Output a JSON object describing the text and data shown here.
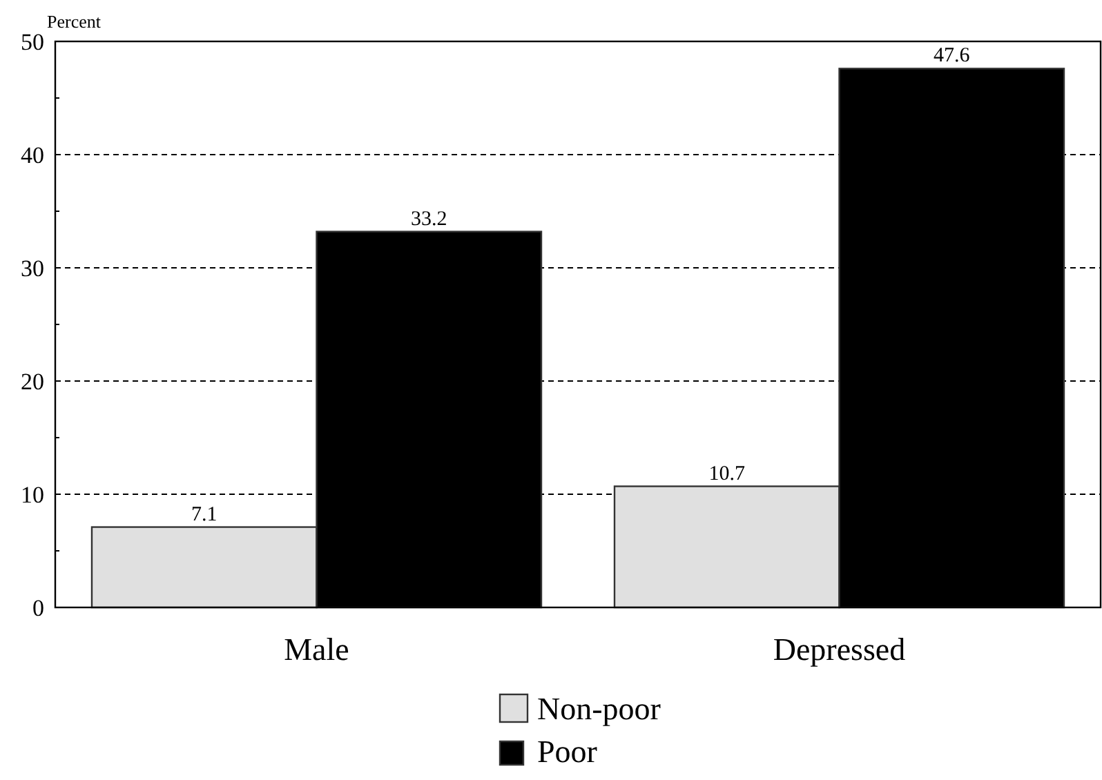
{
  "chart_data": {
    "type": "bar",
    "ylabel": "Percent",
    "categories": [
      "Male",
      "Depressed"
    ],
    "series": [
      {
        "name": "Non-poor",
        "color": "#e0e0e0",
        "values": [
          7.1,
          10.7
        ]
      },
      {
        "name": "Poor",
        "color": "#000000",
        "values": [
          33.2,
          47.6
        ]
      }
    ],
    "ylim": [
      0,
      50
    ],
    "yticks": [
      0,
      {
        "value": 5,
        "label": null
      },
      10,
      {
        "value": 15,
        "label": null
      },
      20,
      {
        "value": 25,
        "label": null
      },
      30,
      {
        "value": 35,
        "label": null
      },
      40,
      {
        "value": 45,
        "label": null
      },
      50
    ],
    "grid": "y",
    "data_labels": true,
    "legend": "bottom"
  }
}
